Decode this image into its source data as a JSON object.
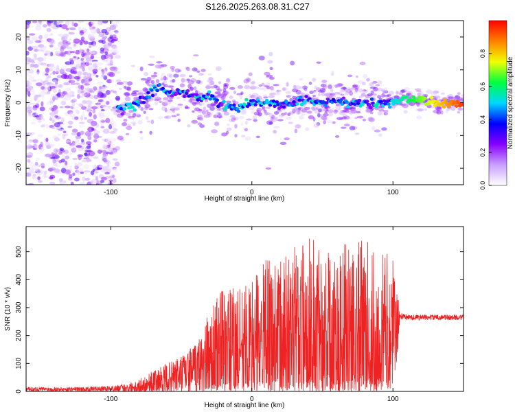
{
  "title": "S126.2025.263.08.31.C27",
  "chart_data": [
    {
      "type": "heatmap",
      "title": "S126.2025.263.08.31.C27",
      "xlabel": "Height of straight line (km)",
      "ylabel": "Frequency (Hz)",
      "xlim": [
        -160,
        150
      ],
      "ylim": [
        -25,
        25
      ],
      "xticks": [
        -100,
        0,
        100
      ],
      "yticks": [
        -20,
        -10,
        0,
        10,
        20
      ],
      "colorbar": {
        "label": "Normalized spectral amplitude",
        "range": [
          0,
          1
        ],
        "ticks": [
          0.0,
          0.2,
          0.4,
          0.6,
          0.8
        ],
        "tick_labels": [
          "0.0",
          "0.2",
          "0.4",
          "0.6",
          "0.8"
        ],
        "colormap": [
          "#ffffff",
          "#c9a0ff",
          "#8800ff",
          "#0000ff",
          "#00d8ff",
          "#00ff40",
          "#f0ff00",
          "#ff8000",
          "#ff0000"
        ]
      },
      "ridge": {
        "x": [
          -95,
          -90,
          -85,
          -80,
          -75,
          -70,
          -65,
          -60,
          -55,
          -50,
          -45,
          -40,
          -35,
          -30,
          -25,
          -20,
          -15,
          -10,
          -5,
          0,
          10,
          20,
          30,
          40,
          50,
          60,
          70,
          80,
          90,
          100,
          110,
          120,
          130,
          140,
          148
        ],
        "y": [
          -2,
          -1.5,
          -1,
          0,
          1.5,
          4,
          4.5,
          3.5,
          3,
          3,
          2.5,
          2.5,
          1.5,
          2.5,
          0,
          -0.5,
          -1.5,
          -2,
          0,
          0,
          0,
          -0.5,
          0,
          1,
          0,
          0.5,
          0,
          0,
          -0.5,
          0.5,
          1,
          0.5,
          0,
          0,
          0
        ]
      },
      "noise_region_x": [
        -160,
        -95
      ]
    },
    {
      "type": "line",
      "xlabel": "Height of straight line (km)",
      "ylabel": "SNR (10 * v/v)",
      "xlim": [
        -160,
        150
      ],
      "ylim": [
        0,
        590
      ],
      "xticks": [
        -100,
        0,
        100
      ],
      "yticks": [
        0,
        100,
        200,
        300,
        400,
        500
      ],
      "series": [
        {
          "name": "SNR",
          "color": "#ee2222",
          "x": [
            -160,
            -140,
            -120,
            -100,
            -90,
            -80,
            -75,
            -70,
            -60,
            -50,
            -40,
            -35,
            -30,
            -25,
            -20,
            -10,
            0,
            10,
            20,
            30,
            40,
            45,
            50,
            60,
            70,
            75,
            80,
            90,
            100,
            105,
            110,
            120,
            130,
            140,
            150
          ],
          "base": [
            8,
            8,
            8,
            10,
            12,
            18,
            25,
            30,
            45,
            60,
            80,
            100,
            110,
            120,
            130,
            140,
            150,
            170,
            180,
            190,
            200,
            200,
            200,
            195,
            190,
            185,
            180,
            180,
            180,
            270,
            265,
            265,
            265,
            265,
            265
          ],
          "amp": [
            8,
            8,
            8,
            10,
            15,
            25,
            35,
            45,
            55,
            70,
            90,
            120,
            180,
            220,
            250,
            230,
            250,
            300,
            300,
            330,
            360,
            380,
            320,
            340,
            340,
            380,
            360,
            340,
            300,
            12,
            10,
            10,
            10,
            10,
            10
          ]
        }
      ]
    }
  ]
}
